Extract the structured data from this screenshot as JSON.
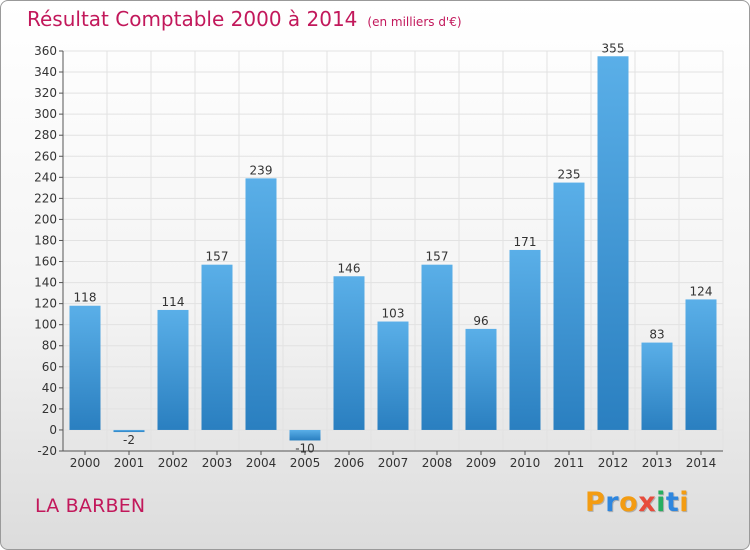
{
  "header": {
    "title": "Résultat Comptable 2000 à 2014",
    "unit": "(en milliers d'€)"
  },
  "footer": {
    "place": "LA BARBEN",
    "logo_letters": [
      "P",
      "r",
      "o",
      "x",
      "i",
      "t",
      "i"
    ],
    "logo_colors": [
      "#f39c12",
      "#2e86de",
      "#f39c12",
      "#e74c3c",
      "#27ae60",
      "#2e86de",
      "#f39c12"
    ]
  },
  "colors": {
    "bar_top": "#5aafe8",
    "bar_bottom": "#2a7fc0",
    "grid": "#e2e2e2",
    "text": "#333333",
    "title": "#c2185b"
  },
  "chart_data": {
    "type": "bar",
    "title": "Résultat Comptable 2000 à 2014",
    "xlabel": "",
    "ylabel": "",
    "ylim": [
      -20,
      360
    ],
    "yticks": [
      -20,
      0,
      20,
      40,
      60,
      80,
      100,
      120,
      140,
      160,
      180,
      200,
      220,
      240,
      260,
      280,
      300,
      320,
      340,
      360
    ],
    "grid": true,
    "categories": [
      "2000",
      "2001",
      "2002",
      "2003",
      "2004",
      "2005",
      "2006",
      "2007",
      "2008",
      "2009",
      "2010",
      "2011",
      "2012",
      "2013",
      "2014"
    ],
    "values": [
      118,
      -2,
      114,
      157,
      239,
      -10,
      146,
      103,
      157,
      96,
      171,
      235,
      355,
      83,
      124
    ]
  }
}
